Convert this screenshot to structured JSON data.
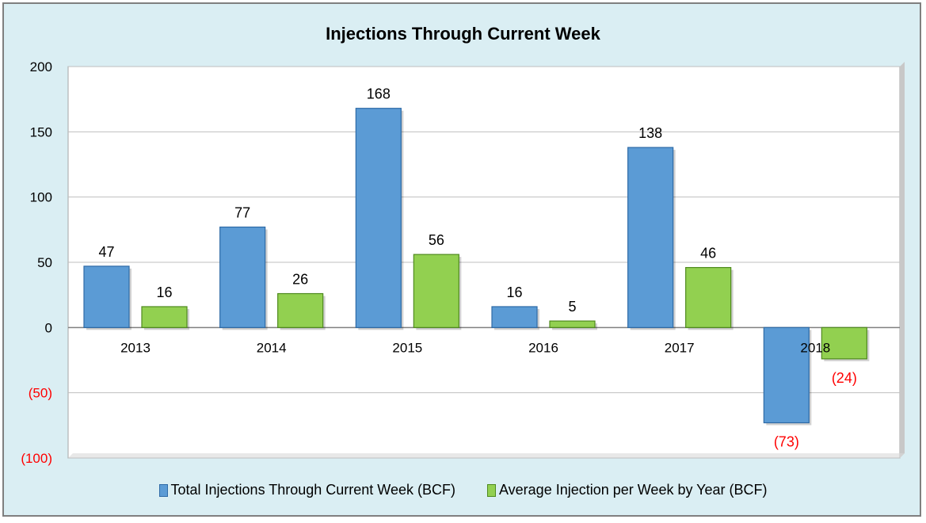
{
  "chart_data": {
    "type": "bar",
    "title": "Injections Through Current Week",
    "categories": [
      "2013",
      "2014",
      "2015",
      "2016",
      "2017",
      "2018"
    ],
    "series": [
      {
        "name": "Total Injections Through Current Week (BCF)",
        "values": [
          47,
          77,
          168,
          16,
          138,
          -73
        ],
        "labels": [
          "47",
          "77",
          "168",
          "16",
          "138",
          "(73)"
        ]
      },
      {
        "name": "Average Injection per Week by Year (BCF)",
        "values": [
          16,
          26,
          56,
          5,
          46,
          -24
        ],
        "labels": [
          "16",
          "26",
          "56",
          "5",
          "46",
          "(24)"
        ]
      }
    ],
    "ylim": [
      -100,
      200
    ],
    "yticks": [
      200,
      150,
      100,
      50,
      0,
      -50,
      -100
    ],
    "ytick_labels": [
      "200",
      "150",
      "100",
      "50",
      "0",
      "(50)",
      "(100)"
    ],
    "grid": true,
    "legend": "bottom",
    "colors": {
      "series1": "#5b9bd5",
      "series2": "#92d050",
      "negative_label": "#ff0000",
      "background": "#daeef3",
      "plot_area": "#ffffff"
    }
  }
}
